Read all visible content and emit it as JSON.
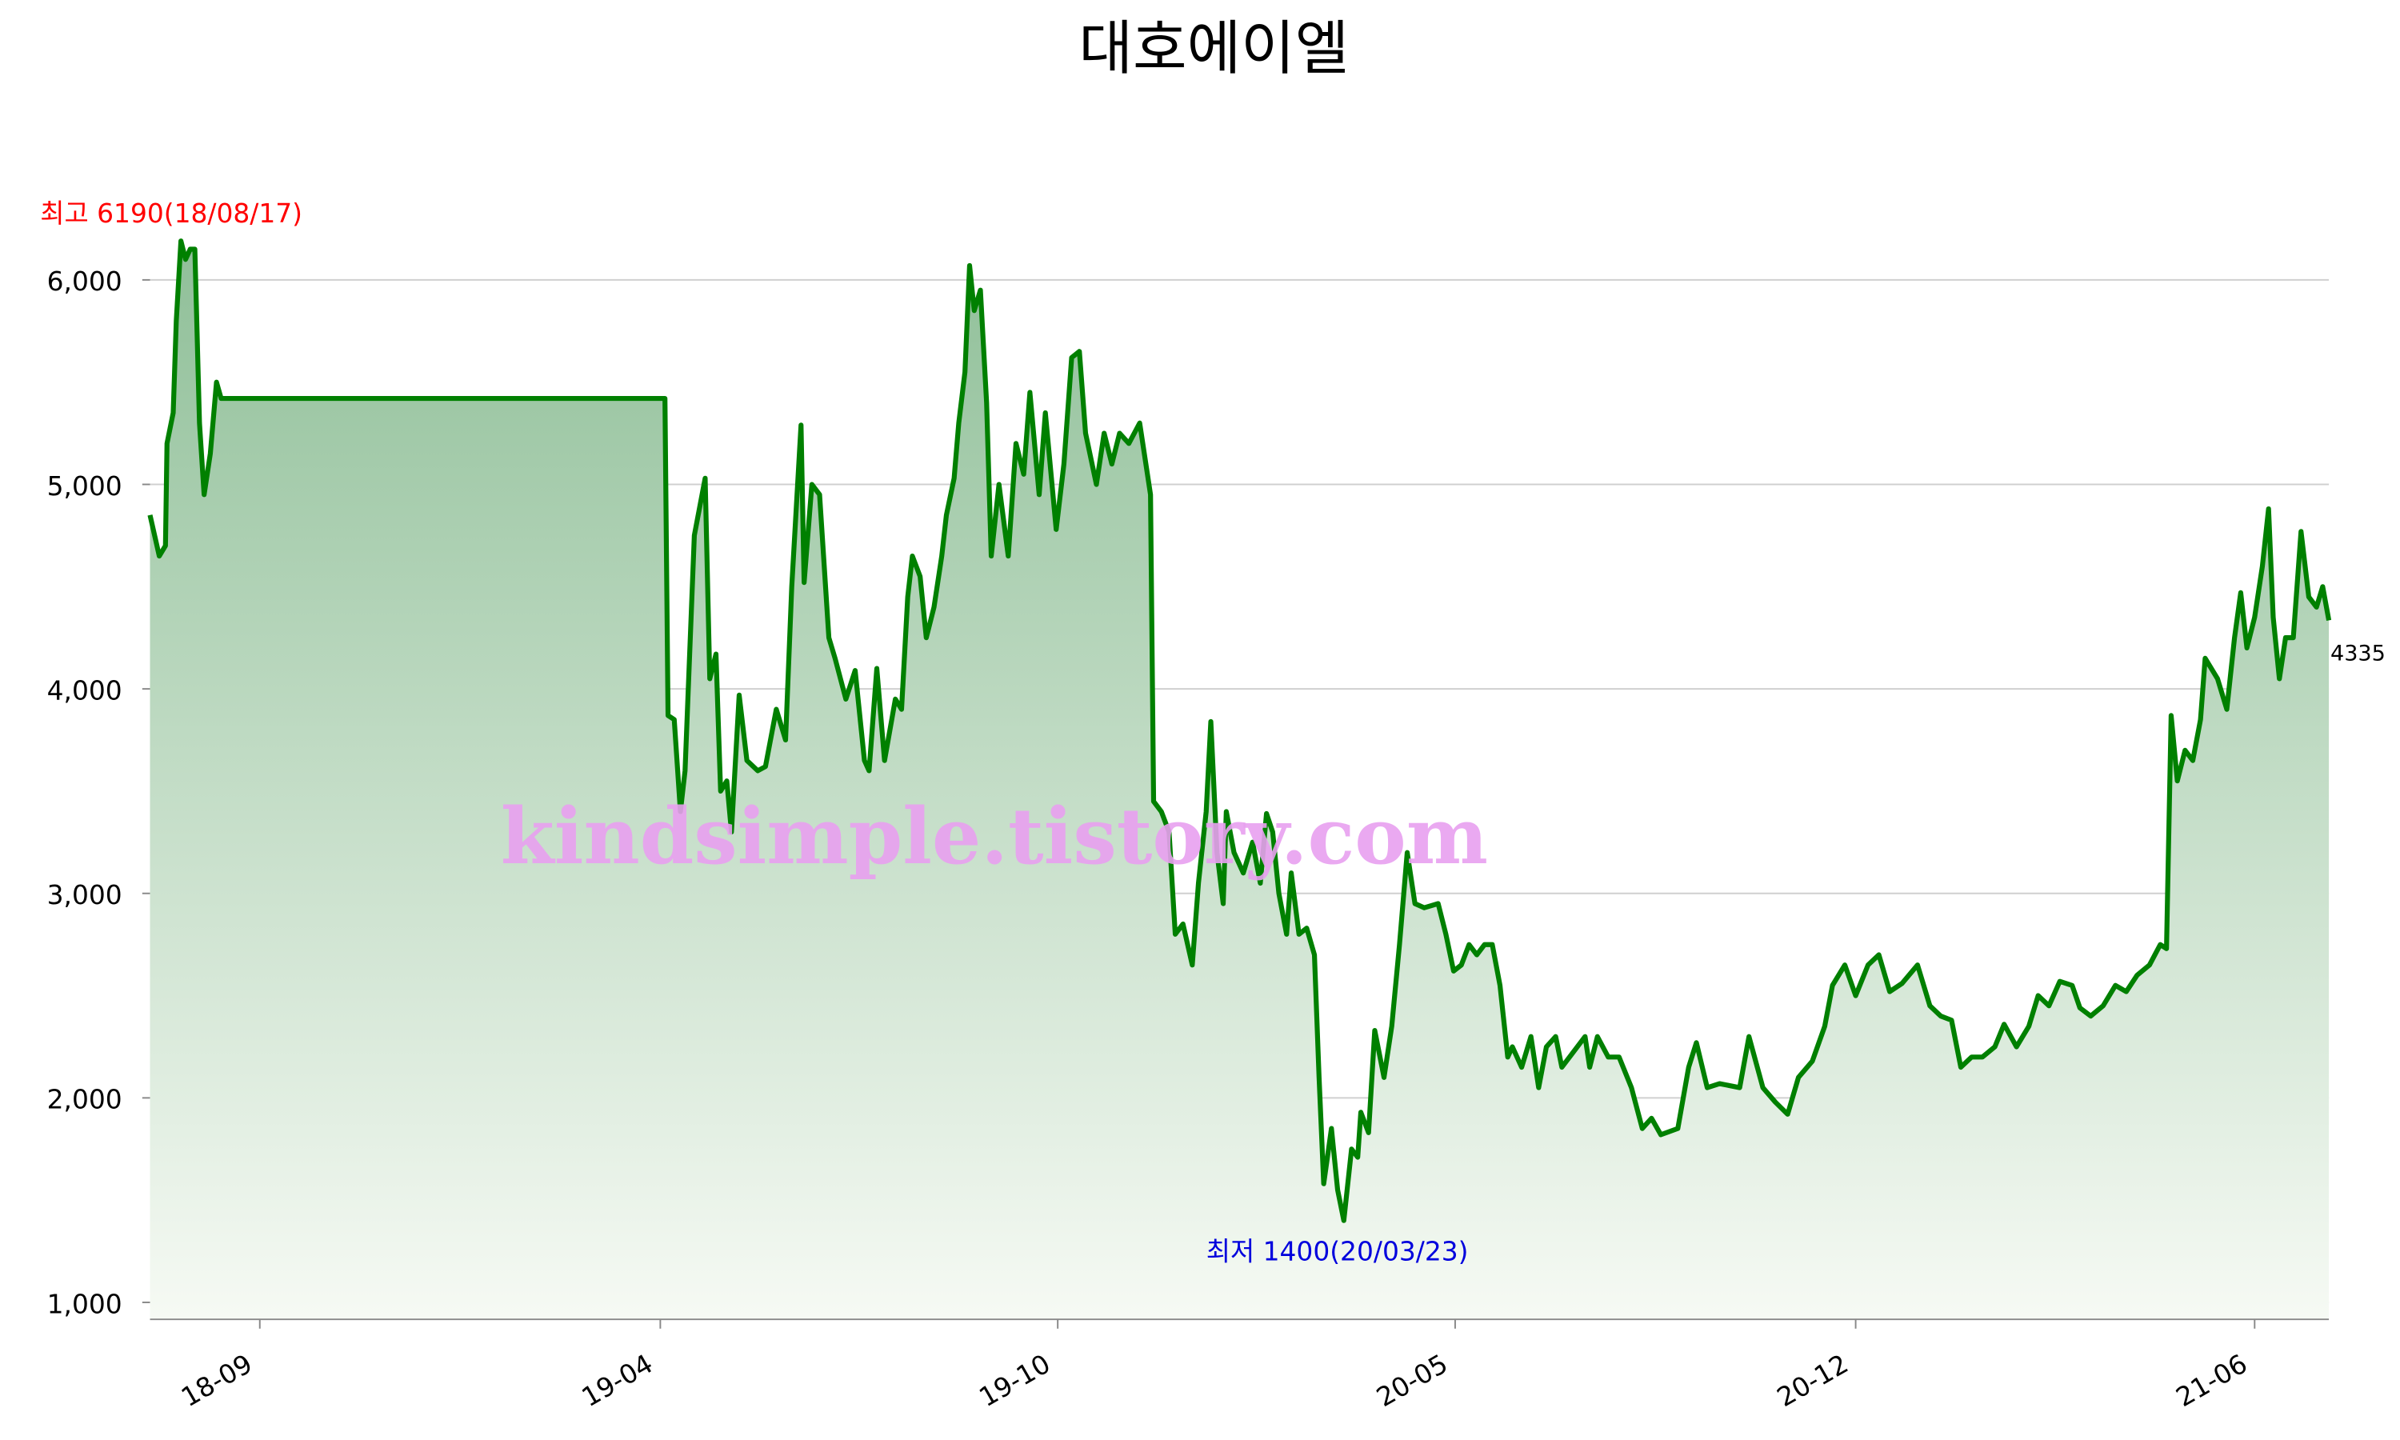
{
  "chart_data": {
    "type": "area",
    "title": "대호에이엘",
    "annotations": [
      "최고 6190(18/08/17)",
      "최저 1400(20/03/23)",
      "4335"
    ],
    "watermark": "kindsimple.tistory.com",
    "color": "#008000",
    "fill_top": "#8fbf98",
    "fill_bottom": "#f6faf4",
    "grid": true,
    "xlim": [
      0,
      1409
    ],
    "xticks": [
      {
        "value": 71,
        "label": "18-09"
      },
      {
        "value": 330,
        "label": "19-04"
      },
      {
        "value": 587,
        "label": "19-10"
      },
      {
        "value": 844,
        "label": "20-05"
      },
      {
        "value": 1103,
        "label": "20-12"
      },
      {
        "value": 1361,
        "label": "21-06"
      }
    ],
    "ylim": [
      917,
      6300
    ],
    "yticks": [
      {
        "value": 1000,
        "label": "1,000"
      },
      {
        "value": 2000,
        "label": "2,000"
      },
      {
        "value": 3000,
        "label": "3,000"
      },
      {
        "value": 4000,
        "label": "4,000"
      },
      {
        "value": 5000,
        "label": "5,000"
      },
      {
        "value": 6000,
        "label": "6,000"
      }
    ],
    "x": [
      0,
      6,
      10,
      11,
      15,
      17,
      20,
      23,
      26,
      29,
      32,
      35,
      39,
      43,
      46,
      333,
      335,
      339,
      343,
      346,
      352,
      359,
      362,
      366,
      369,
      373,
      376,
      381,
      386,
      393,
      398,
      405,
      411,
      415,
      421,
      423,
      428,
      433,
      439,
      443,
      450,
      456,
      462,
      465,
      470,
      475,
      482,
      486,
      490,
      493,
      498,
      502,
      507,
      512,
      515,
      520,
      523,
      527,
      530,
      533,
      537,
      541,
      544,
      549,
      555,
      560,
      565,
      569,
      575,
      579,
      586,
      591,
      596,
      601,
      605,
      612,
      617,
      622,
      627,
      633,
      640,
      647,
      649,
      654,
      659,
      663,
      668,
      674,
      678,
      683,
      686,
      690,
      694,
      696,
      701,
      707,
      713,
      718,
      722,
      726,
      730,
      735,
      738,
      743,
      748,
      753,
      756,
      759,
      764,
      768,
      772,
      777,
      781,
      783,
      788,
      792,
      798,
      803,
      808,
      813,
      818,
      824,
      833,
      838,
      843,
      848,
      853,
      858,
      863,
      868,
      873,
      878,
      881,
      887,
      893,
      898,
      903,
      909,
      913,
      923,
      928,
      931,
      936,
      943,
      950,
      958,
      965,
      971,
      977,
      988,
      995,
      1000,
      1007,
      1015,
      1028,
      1034,
      1043,
      1051,
      1059,
      1066,
      1075,
      1083,
      1088,
      1096,
      1103,
      1111,
      1118,
      1125,
      1133,
      1143,
      1151,
      1158,
      1165,
      1171,
      1178,
      1185,
      1193,
      1199,
      1207,
      1215,
      1221,
      1228,
      1235,
      1243,
      1248,
      1255,
      1263,
      1271,
      1278,
      1285,
      1293,
      1300,
      1304,
      1307,
      1311,
      1316,
      1321,
      1326,
      1329,
      1337,
      1343,
      1348,
      1352,
      1356,
      1361,
      1366,
      1370,
      1373,
      1377,
      1381,
      1386,
      1391,
      1396,
      1401,
      1405,
      1409
    ],
    "values": [
      4850,
      4650,
      4700,
      5200,
      5350,
      5800,
      6190,
      6100,
      6150,
      6150,
      5300,
      4950,
      5150,
      5500,
      5420,
      5420,
      3870,
      3850,
      3400,
      3600,
      4750,
      5030,
      4050,
      4170,
      3500,
      3550,
      3300,
      3970,
      3650,
      3600,
      3620,
      3900,
      3750,
      4500,
      5290,
      4520,
      5000,
      4950,
      4250,
      4150,
      3950,
      4090,
      3650,
      3600,
      4100,
      3650,
      3950,
      3900,
      4450,
      4650,
      4550,
      4250,
      4400,
      4650,
      4850,
      5030,
      5300,
      5550,
      6070,
      5850,
      5950,
      5400,
      4650,
      5000,
      4650,
      5200,
      5050,
      5450,
      4950,
      5350,
      4780,
      5100,
      5620,
      5650,
      5250,
      5000,
      5250,
      5100,
      5250,
      5200,
      5300,
      4950,
      3450,
      3400,
      3300,
      2800,
      2850,
      2650,
      3050,
      3400,
      3840,
      3200,
      2950,
      3400,
      3200,
      3100,
      3250,
      3050,
      3390,
      3300,
      3000,
      2800,
      3100,
      2800,
      2830,
      2700,
      2100,
      1580,
      1850,
      1550,
      1400,
      1750,
      1710,
      1930,
      1830,
      2330,
      2100,
      2350,
      2750,
      3200,
      2950,
      2930,
      2950,
      2800,
      2620,
      2650,
      2750,
      2700,
      2750,
      2750,
      2550,
      2200,
      2250,
      2150,
      2300,
      2050,
      2250,
      2300,
      2150,
      2250,
      2300,
      2150,
      2300,
      2200,
      2200,
      2050,
      1850,
      1900,
      1820,
      1850,
      2150,
      2270,
      2050,
      2070,
      2050,
      2300,
      2050,
      1980,
      1920,
      2100,
      2180,
      2350,
      2550,
      2650,
      2500,
      2650,
      2700,
      2520,
      2560,
      2650,
      2450,
      2400,
      2380,
      2150,
      2200,
      2200,
      2250,
      2360,
      2250,
      2350,
      2500,
      2450,
      2570,
      2550,
      2440,
      2400,
      2450,
      2550,
      2520,
      2600,
      2650,
      2750,
      2730,
      3870,
      3550,
      3700,
      3650,
      3850,
      4150,
      4050,
      3900,
      4250,
      4470,
      4200,
      4350,
      4600,
      4880,
      4350,
      4050,
      4250,
      4250,
      4770,
      4450,
      4400,
      4500,
      4335
    ]
  }
}
